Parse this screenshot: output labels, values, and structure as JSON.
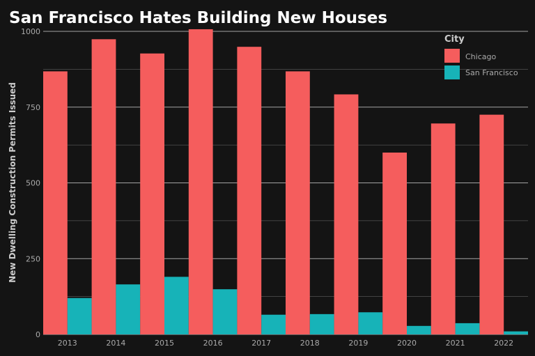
{
  "chart_data": {
    "type": "bar",
    "title": "San Francisco Hates Building New Houses",
    "xlabel": "",
    "ylabel": "New Dwelling Construction Permits Issued",
    "ylim": [
      0,
      1000
    ],
    "yticks": [
      0,
      250,
      500,
      750,
      1000
    ],
    "categories": [
      "2013",
      "2014",
      "2015",
      "2016",
      "2017",
      "2018",
      "2019",
      "2020",
      "2021",
      "2022"
    ],
    "series": [
      {
        "name": "Chicago",
        "values": [
          868,
          974,
          927,
          1007,
          949,
          868,
          792,
          600,
          696,
          725
        ]
      },
      {
        "name": "San Francisco",
        "values": [
          120,
          165,
          190,
          149,
          65,
          67,
          73,
          28,
          37,
          10
        ]
      }
    ],
    "legend": {
      "title": "City",
      "placement": "top-right"
    },
    "grid": true
  },
  "colors": {
    "background": "#141414",
    "title": "#ffffff",
    "text": "#aaaaaa",
    "axis_label": "#cccccc",
    "grid": "#bdbdbd",
    "series": [
      "#f55d5d",
      "#17b3b8"
    ]
  }
}
